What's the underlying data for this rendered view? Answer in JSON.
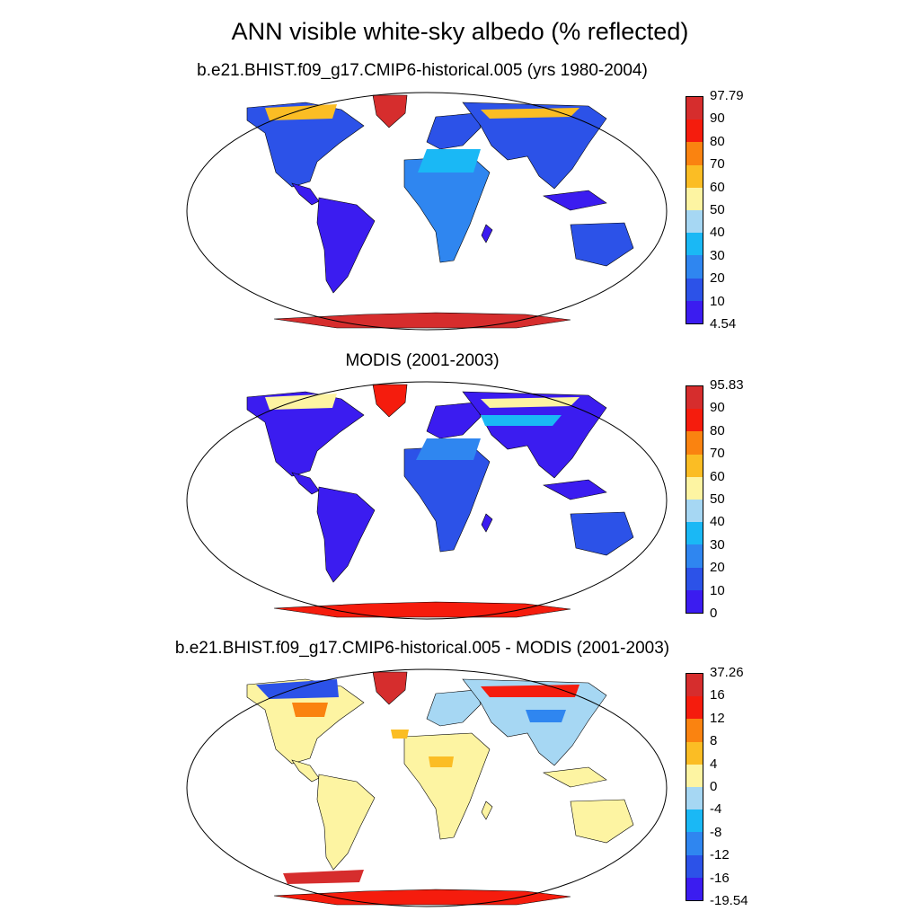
{
  "title": "ANN visible white-sky albedo (% reflected)",
  "colors": {
    "scale_bottom_to_top": [
      "#3b1cf0",
      "#2c52e8",
      "#2f86f0",
      "#1ab8f5",
      "#a6d7f3",
      "#fdf4a2",
      "#fbbd24",
      "#fa8310",
      "#f51c0d",
      "#d62d2d"
    ],
    "model_low_band": "#3b1cf0",
    "model_desert_band": "#2f86f0",
    "obs_ice_band": "#f51c0d",
    "diff_land_band": "#fdf4a2"
  },
  "panels": [
    {
      "title": "b.e21.BHIST.f09_g17.CMIP6-historical.005 (yrs 1980-2004)",
      "colorbar_labels": [
        "97.79",
        "90",
        "80",
        "70",
        "60",
        "50",
        "40",
        "30",
        "20",
        "10",
        "4.54"
      ]
    },
    {
      "title": "MODIS (2001-2003)",
      "colorbar_labels": [
        "95.83",
        "90",
        "80",
        "70",
        "60",
        "50",
        "40",
        "30",
        "20",
        "10",
        "0"
      ]
    },
    {
      "title": "b.e21.BHIST.f09_g17.CMIP6-historical.005 - MODIS (2001-2003)",
      "colorbar_labels": [
        "37.26",
        "16",
        "12",
        "8",
        "4",
        "0",
        "-4",
        "-8",
        "-12",
        "-16",
        "-19.54"
      ]
    }
  ]
}
